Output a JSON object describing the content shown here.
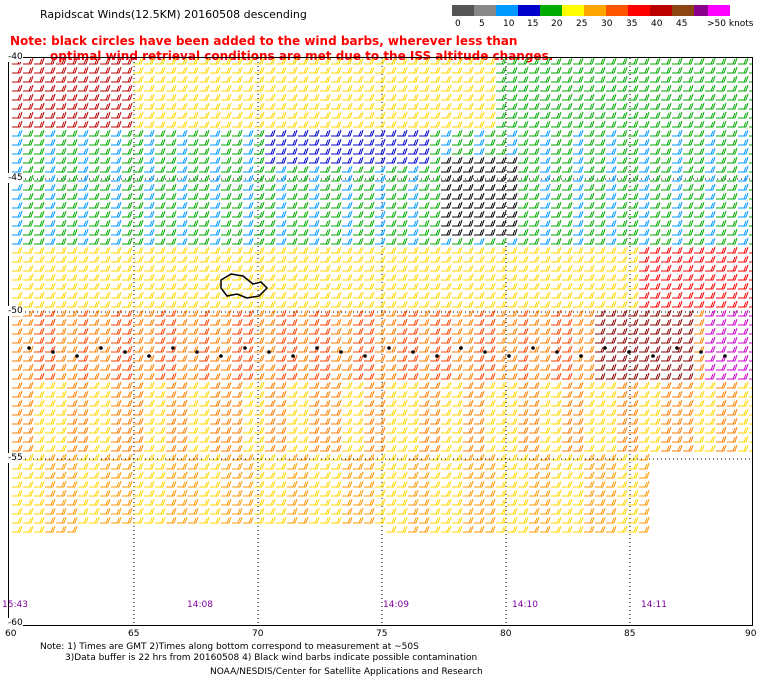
{
  "header": {
    "title": "Rapidscat Winds(12.5KM) 20160508 descending",
    "note_line1": "Note: black circles have been added to the wind barbs, wherever less than",
    "note_line2": "optimal wind retrieval conditions are met due to the ISS altitude changes."
  },
  "color_scale": {
    "labels": [
      "0",
      "5",
      "10",
      "15",
      "20",
      "25",
      "30",
      "35",
      "40",
      "45",
      ">50 knots"
    ],
    "colors": [
      "#555555",
      "#888888",
      "#0099ff",
      "#0000cc",
      "#00aa00",
      "#ffff00",
      "#ffa500",
      "#ff5500",
      "#ff0000",
      "#bb0000",
      "#8b4513",
      "#8b008b",
      "#ff00ff",
      "#4b0082"
    ]
  },
  "map": {
    "lat_labels": [
      "-40",
      "-45",
      "-50",
      "-55",
      "-60"
    ],
    "lon_labels": [
      "60",
      "65",
      "70",
      "75",
      "80",
      "85",
      "90"
    ],
    "time_labels": [
      "15:43",
      "14:08",
      "14:09",
      "14:10",
      "14:11"
    ]
  },
  "footer": {
    "line1": "Note: 1) Times are GMT 2)Times along bottom correspond to measurement at ~50S",
    "line2": "3)Data buffer is 22 hrs from 20160508 4) Black wind barbs indicate possible contamination",
    "line3": "NOAA/NESDIS/Center for Satellite Applications and Research"
  }
}
